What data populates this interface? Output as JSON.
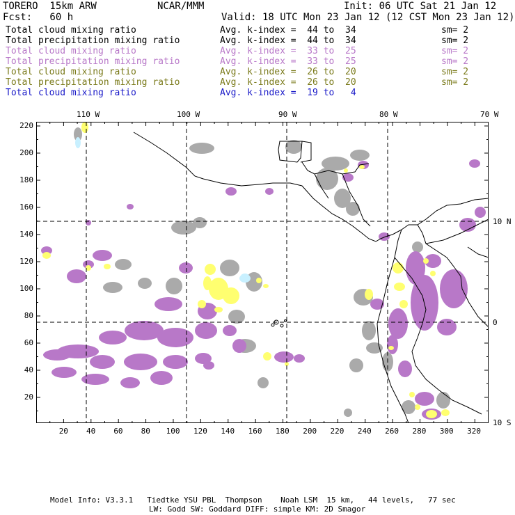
{
  "header": {
    "model": "TORERO  15km ARW",
    "org": "NCAR/MMM",
    "init": "Init: 06 UTC Sat 21 Jan 12",
    "fcst": "Fcst:   60 h",
    "valid": "Valid: 18 UTC Mon 23 Jan 12 (12 CST Mon 23 Jan 12)"
  },
  "legend": [
    {
      "field": "Total cloud mixing ratio",
      "range": "Avg. k-index =  44 to  34",
      "sm": "sm= 2",
      "color": "#000000"
    },
    {
      "field": "Total precipitation mixing ratio",
      "range": "Avg. k-index =  44 to  34",
      "sm": "sm= 2",
      "color": "#000000"
    },
    {
      "field": "Total cloud mixing ratio",
      "range": "Avg. k-index =  33 to  25",
      "sm": "sm= 2",
      "color": "#b878c8"
    },
    {
      "field": "Total precipitation mixing ratio",
      "range": "Avg. k-index =  33 to  25",
      "sm": "sm= 2",
      "color": "#b878c8"
    },
    {
      "field": "Total cloud mixing ratio",
      "range": "Avg. k-index =  26 to  20",
      "sm": "sm= 2",
      "color": "#7a7a1a"
    },
    {
      "field": "Total precipitation mixing ratio",
      "range": "Avg. k-index =  26 to  20",
      "sm": "sm= 2",
      "color": "#7a7a1a"
    },
    {
      "field": "Total cloud mixing ratio",
      "range": "Avg. k-index =  19 to   4",
      "sm": "",
      "color": "#1818c8"
    }
  ],
  "axes": {
    "lon_labels": [
      "110 W",
      "100 W",
      "90 W",
      "80 W",
      "70 W"
    ],
    "lat_labels": [
      "10 N",
      "0",
      "10 S"
    ],
    "x_ticks": [
      "20",
      "40",
      "60",
      "80",
      "100",
      "120",
      "140",
      "160",
      "180",
      "200",
      "220",
      "240",
      "260",
      "280",
      "300",
      "320"
    ],
    "y_ticks": [
      "20",
      "40",
      "60",
      "80",
      "100",
      "120",
      "140",
      "160",
      "180",
      "200",
      "220"
    ]
  },
  "colors": {
    "gray": "#aaaaaa",
    "violet": "#b878c8",
    "yellow": "#ffff70",
    "lightblue": "#c8f0ff"
  },
  "footer": {
    "line1": "Model Info: V3.3.1   Tiedtke YSU PBL  Thompson    Noah LSM  15 km,   44 levels,   77 sec",
    "line2": "LW: Godd SW: Goddard DIFF: simple KM: 2D Smagor"
  }
}
